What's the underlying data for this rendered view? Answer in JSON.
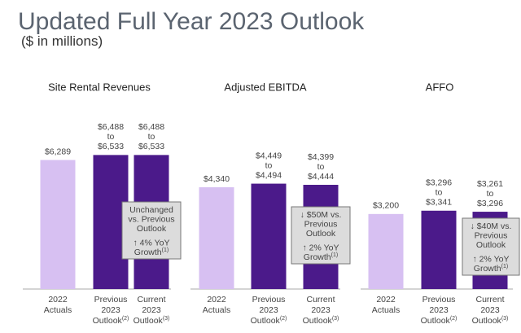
{
  "header": {
    "title": "Updated Full Year 2023 Outlook",
    "subtitle": "($ in millions)"
  },
  "chart_data": [
    {
      "type": "bar",
      "title": "Site Rental Revenues",
      "categories": [
        "2022 Actuals",
        "Previous 2023 Outlook(2)",
        "Current 2023 Outlook(3)"
      ],
      "values": [
        6289,
        6488,
        6488
      ],
      "value_labels": [
        "$6,289",
        "$6,488",
        "$6,488"
      ],
      "range_highs": [
        null,
        6533,
        6533
      ],
      "range_high_labels": [
        null,
        "$6,533",
        "$6,533"
      ],
      "range_word": "to",
      "colors": [
        "#d7c0f2",
        "#4b1a8a",
        "#4b1a8a"
      ],
      "annotation": [
        "Unchanged",
        "vs. Previous",
        "Outlook",
        "↑ 4% YoY",
        "Growth(1)"
      ]
    },
    {
      "type": "bar",
      "title": "Adjusted EBITDA",
      "categories": [
        "2022 Actuals",
        "Previous 2023 Outlook(2)",
        "Current 2023 Outlook(3)"
      ],
      "values": [
        4340,
        4449,
        4399
      ],
      "value_labels": [
        "$4,340",
        "$4,449",
        "$4,399"
      ],
      "range_highs": [
        null,
        4494,
        4444
      ],
      "range_high_labels": [
        null,
        "$4,494",
        "$4,444"
      ],
      "range_word": "to",
      "colors": [
        "#d7c0f2",
        "#4b1a8a",
        "#4b1a8a"
      ],
      "annotation": [
        "↓ $50M vs.",
        "Previous",
        "Outlook",
        "↑ 2% YoY",
        "Growth(1)"
      ]
    },
    {
      "type": "bar",
      "title": "AFFO",
      "categories": [
        "2022 Actuals",
        "Previous 2023 Outlook(2)",
        "Current 2023 Outlook(3)"
      ],
      "values": [
        3200,
        3296,
        3261
      ],
      "value_labels": [
        "$3,200",
        "$3,296",
        "$3,261"
      ],
      "range_highs": [
        null,
        3341,
        3296
      ],
      "range_high_labels": [
        null,
        "$3,341",
        "$3,296"
      ],
      "range_word": "to",
      "colors": [
        "#d7c0f2",
        "#4b1a8a",
        "#4b1a8a"
      ],
      "annotation": [
        "↓ $40M vs.",
        "Previous",
        "Outlook",
        "↑ 2% YoY",
        "Growth(1)"
      ]
    }
  ]
}
